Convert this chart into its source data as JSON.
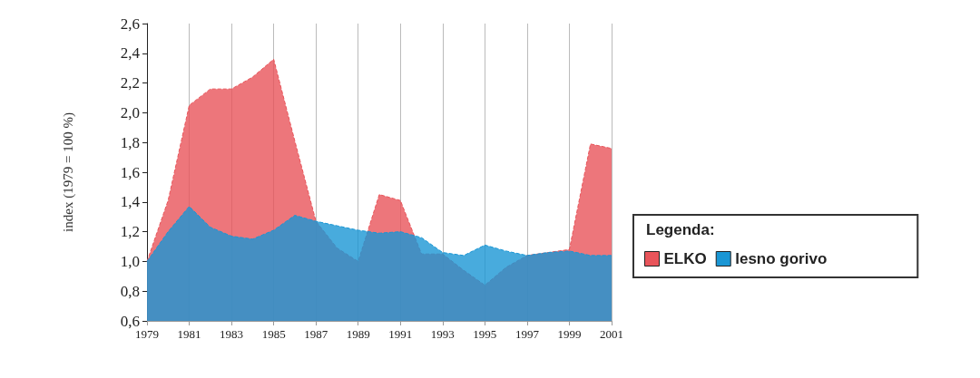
{
  "chart_data": {
    "type": "area",
    "ylabel": "index (1979 = 100 %)",
    "legend_title": "Legenda:",
    "x": [
      1979,
      1980,
      1981,
      1982,
      1983,
      1984,
      1985,
      1986,
      1987,
      1988,
      1989,
      1990,
      1991,
      1992,
      1993,
      1994,
      1995,
      1996,
      1997,
      1998,
      1999,
      2000,
      2001
    ],
    "series": [
      {
        "name": "ELKO",
        "color": "#e8545a",
        "values": [
          1.0,
          1.41,
          2.05,
          2.16,
          2.16,
          2.24,
          2.36,
          1.81,
          1.27,
          1.09,
          1.0,
          1.45,
          1.41,
          1.05,
          1.05,
          0.94,
          0.84,
          0.96,
          1.04,
          1.06,
          1.08,
          1.79,
          1.76
        ]
      },
      {
        "name": "lesno gorivo",
        "color": "#1a96d4",
        "values": [
          1.0,
          1.2,
          1.37,
          1.23,
          1.17,
          1.15,
          1.21,
          1.31,
          1.27,
          1.24,
          1.21,
          1.19,
          1.2,
          1.16,
          1.06,
          1.04,
          1.11,
          1.07,
          1.04,
          1.06,
          1.07,
          1.04,
          1.04
        ]
      }
    ],
    "xlim": [
      1979,
      2001
    ],
    "xticks": [
      1979,
      1981,
      1983,
      1985,
      1987,
      1989,
      1991,
      1993,
      1995,
      1997,
      1999,
      2001
    ],
    "ylim": [
      0.6,
      2.6
    ],
    "yticks": [
      {
        "value": 0.6,
        "label": "0,6"
      },
      {
        "value": 0.8,
        "label": "0,8"
      },
      {
        "value": 1.0,
        "label": "1,0"
      },
      {
        "value": 1.2,
        "label": "1,2"
      },
      {
        "value": 1.4,
        "label": "1,4"
      },
      {
        "value": 1.6,
        "label": "1,6"
      },
      {
        "value": 1.8,
        "label": "1,8"
      },
      {
        "value": 2.0,
        "label": "2,0"
      },
      {
        "value": 2.2,
        "label": "2,2"
      },
      {
        "value": 2.4,
        "label": "2,4"
      },
      {
        "value": 2.6,
        "label": "2,6"
      }
    ],
    "grid": "x",
    "legend": "right"
  }
}
